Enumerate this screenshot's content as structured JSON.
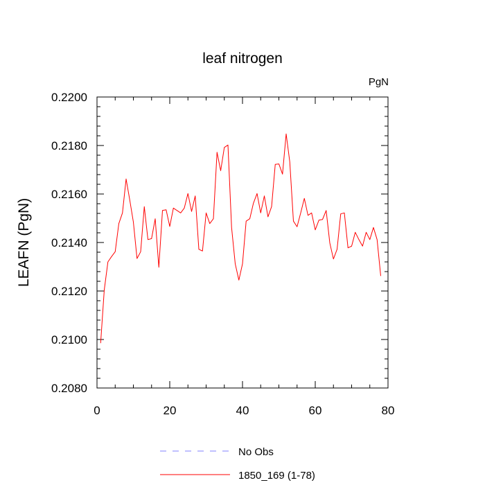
{
  "chart_data": {
    "type": "line",
    "title": "leaf nitrogen",
    "units_label": "PgN",
    "xlabel": "",
    "ylabel": "LEAFN  (PgN)",
    "xlim": [
      0,
      80
    ],
    "ylim": [
      0.208,
      0.22
    ],
    "x_ticks": [
      0,
      20,
      40,
      60,
      80
    ],
    "x_tick_labels": [
      "0",
      "20",
      "40",
      "60",
      "80"
    ],
    "y_ticks": [
      0.208,
      0.21,
      0.212,
      0.214,
      0.216,
      0.218,
      0.22
    ],
    "y_tick_labels": [
      "0.2080",
      "0.2100",
      "0.2120",
      "0.2140",
      "0.2160",
      "0.2180",
      "0.2200"
    ],
    "grid": false,
    "legend_placement": "bottom-center",
    "legend": [
      {
        "label": "No Obs",
        "color": "#8080ff",
        "dash": true
      },
      {
        "label": "1850_169 (1-78)",
        "color": "#ff0000",
        "dash": false
      }
    ],
    "series": [
      {
        "name": "1850_169 (1-78)",
        "color": "#ff0000",
        "x": [
          1,
          2,
          3,
          4,
          5,
          6,
          7,
          8,
          9,
          10,
          11,
          12,
          13,
          14,
          15,
          16,
          17,
          18,
          19,
          20,
          21,
          22,
          23,
          24,
          25,
          26,
          27,
          28,
          29,
          30,
          31,
          32,
          33,
          34,
          35,
          36,
          37,
          38,
          39,
          40,
          41,
          42,
          43,
          44,
          45,
          46,
          47,
          48,
          49,
          50,
          51,
          52,
          53,
          54,
          55,
          56,
          57,
          58,
          59,
          60,
          61,
          62,
          63,
          64,
          65,
          66,
          67,
          68,
          69,
          70,
          71,
          72,
          73,
          74,
          75,
          76,
          77,
          78
        ],
        "values": [
          0.20985,
          0.21205,
          0.2132,
          0.21342,
          0.21362,
          0.21478,
          0.21522,
          0.21662,
          0.21576,
          0.21484,
          0.21334,
          0.21362,
          0.21548,
          0.21412,
          0.21416,
          0.21498,
          0.21298,
          0.21532,
          0.21535,
          0.21466,
          0.21542,
          0.21532,
          0.21522,
          0.21542,
          0.21602,
          0.21528,
          0.21592,
          0.21372,
          0.21365,
          0.21522,
          0.21478,
          0.21498,
          0.21772,
          0.21696,
          0.21792,
          0.21802,
          0.21462,
          0.21312,
          0.21245,
          0.21312,
          0.21488,
          0.21498,
          0.21562,
          0.21602,
          0.21522,
          0.21592,
          0.21506,
          0.21548,
          0.21722,
          0.21724,
          0.21682,
          0.21848,
          0.21732,
          0.21488,
          0.21465,
          0.21522,
          0.21582,
          0.21512,
          0.21522,
          0.21452,
          0.21492,
          0.21495,
          0.21532,
          0.21398,
          0.21332,
          0.21372,
          0.21518,
          0.21522,
          0.21378,
          0.21385,
          0.21442,
          0.21412,
          0.21385,
          0.21442,
          0.21412,
          0.21462,
          0.21412,
          0.21262
        ]
      }
    ]
  }
}
